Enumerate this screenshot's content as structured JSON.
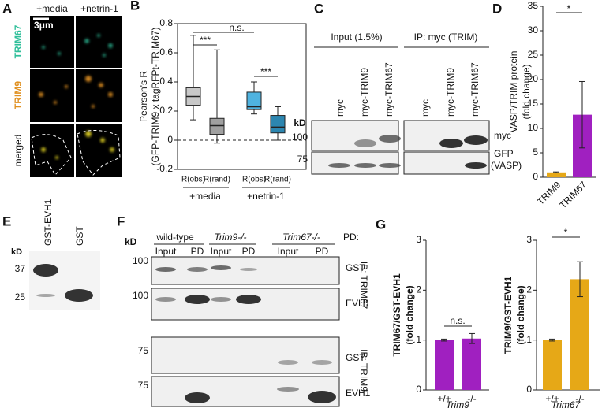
{
  "panels": {
    "A": {
      "label": "A",
      "columns": [
        "+media",
        "+netrin-1"
      ],
      "rows": [
        "TRIM67",
        "TRIM9",
        "merged"
      ],
      "scale_bar": "3μm"
    },
    "C": {
      "label": "C",
      "groups": [
        "Input (1.5%)",
        "IP: myc (TRIM)"
      ],
      "lanes": [
        "myc",
        "myc-TRIM9",
        "myc-TRIM67",
        "myc",
        "myc-TRIM9",
        "myc-TRIM67"
      ],
      "kd": "kD",
      "markers": [
        "100",
        "75"
      ],
      "bands": [
        "myc",
        "GFP",
        "(VASP)"
      ]
    },
    "E": {
      "label": "E",
      "lanes": [
        "GST-EVH1",
        "GST"
      ],
      "kd": "kD",
      "markers": [
        "37",
        "25"
      ]
    },
    "F": {
      "label": "F",
      "genotypes": [
        "wild-type",
        "Trim9-/-",
        "Trim67-/-"
      ],
      "lanes": [
        "Input",
        "PD",
        "Input",
        "PD",
        "Input",
        "PD"
      ],
      "pd": "PD:",
      "kd": "kD",
      "markers": [
        "100",
        "100",
        "75",
        "75"
      ],
      "bands": [
        "GST",
        "EVH1",
        "GST",
        "EVH1"
      ],
      "ib": [
        "IB: TRIM67",
        "IB: TRIM9"
      ]
    },
    "G": {
      "label": "G"
    }
  },
  "chart_data": [
    {
      "type": "box",
      "label": "B",
      "ytitle": [
        "Pearson's R",
        "(GFP-TRIM9 x tagRFPt-TRIM67)"
      ],
      "categories": [
        "R(obs)",
        "R(rand)",
        "R(obs)",
        "R(rand)"
      ],
      "groups": [
        "+media",
        "+netrin-1"
      ],
      "colors": [
        "#c8c8c8",
        "#a0a0a0",
        "#4fb3e0",
        "#2c86b0"
      ],
      "boxes": [
        {
          "min": 0.14,
          "q1": 0.24,
          "median": 0.3,
          "q3": 0.36,
          "max": 0.72
        },
        {
          "min": -0.02,
          "q1": 0.04,
          "median": 0.1,
          "q3": 0.15,
          "max": 0.62
        },
        {
          "min": 0.18,
          "q1": 0.21,
          "median": 0.23,
          "q3": 0.33,
          "max": 0.4
        },
        {
          "min": 0.0,
          "q1": 0.05,
          "median": 0.09,
          "q3": 0.17,
          "max": 0.23
        }
      ],
      "reference_line": 0,
      "annotations": [
        "***",
        "n.s.",
        "***"
      ],
      "ylim": [
        -0.2,
        0.8
      ],
      "yticks": [
        -0.2,
        0.0,
        0.2,
        0.4,
        0.6,
        0.8
      ]
    },
    {
      "type": "bar",
      "label": "D",
      "ytitle": [
        "VASP/TRIM protein",
        "(fold change)"
      ],
      "categories": [
        "TRIM9",
        "TRIM67"
      ],
      "values": [
        1,
        12.8
      ],
      "errors": [
        0.1,
        6.8
      ],
      "colors": [
        "#e6a817",
        "#a020c0"
      ],
      "annotations": [
        "*"
      ],
      "ylim": [
        0,
        35
      ],
      "yticks": [
        0,
        5,
        10,
        15,
        20,
        25,
        30,
        35
      ]
    },
    {
      "type": "bar",
      "ytitle": [
        "TRIM67/GST-EVH1",
        "(fold change)"
      ],
      "categories": [
        "+/+",
        "-/-"
      ],
      "xlabel": "Trim9",
      "values": [
        1,
        1.03
      ],
      "errors": [
        0.02,
        0.1
      ],
      "colors": [
        "#a020c0",
        "#a020c0"
      ],
      "annotations": [
        "n.s."
      ],
      "ylim": [
        0,
        3
      ],
      "yticks": [
        0,
        1,
        2,
        3
      ]
    },
    {
      "type": "bar",
      "ytitle": [
        "TRIM9/GST-EVH1",
        "(fold change)"
      ],
      "categories": [
        "+/+",
        "-/-"
      ],
      "xlabel": "Trim67",
      "values": [
        1,
        2.22
      ],
      "errors": [
        0.02,
        0.35
      ],
      "colors": [
        "#e6a817",
        "#e6a817"
      ],
      "annotations": [
        "*"
      ],
      "ylim": [
        0,
        3
      ],
      "yticks": [
        0,
        1,
        2,
        3
      ]
    }
  ]
}
